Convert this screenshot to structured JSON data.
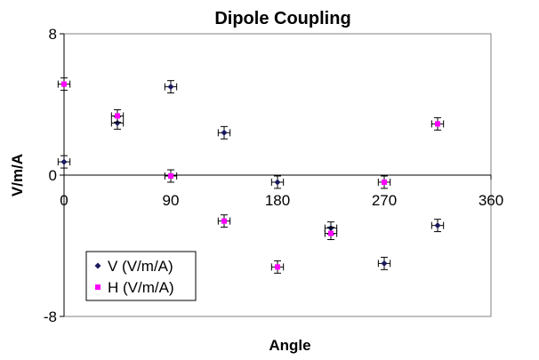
{
  "chart_data": {
    "type": "scatter",
    "title": "Dipole Coupling",
    "xlabel": "Angle",
    "ylabel": "V/m/A",
    "xlim": [
      0,
      360
    ],
    "ylim": [
      -8,
      8
    ],
    "x_ticks": [
      "0",
      "90",
      "180",
      "270",
      "360"
    ],
    "y_ticks": [
      "8",
      "0",
      "-8"
    ],
    "grid": false,
    "legend_position": "bottom-left",
    "series": [
      {
        "name": "V (V/m/A)",
        "color": "#1a1a5e",
        "marker": "diamond",
        "x": [
          0,
          45,
          90,
          135,
          180,
          225,
          270,
          315
        ],
        "y": [
          0.75,
          2.95,
          5.0,
          2.4,
          -0.4,
          -3.0,
          -5.0,
          -2.85
        ],
        "y_err": 0.35,
        "x_err": 5
      },
      {
        "name": "H (V/m/A)",
        "color": "#ff00ff",
        "marker": "square",
        "x": [
          0,
          45,
          90,
          135,
          180,
          225,
          270,
          315
        ],
        "y": [
          5.15,
          3.35,
          -0.05,
          -2.6,
          -5.2,
          -3.3,
          -0.4,
          2.9
        ],
        "y_err": 0.35,
        "x_err": 5
      }
    ]
  }
}
